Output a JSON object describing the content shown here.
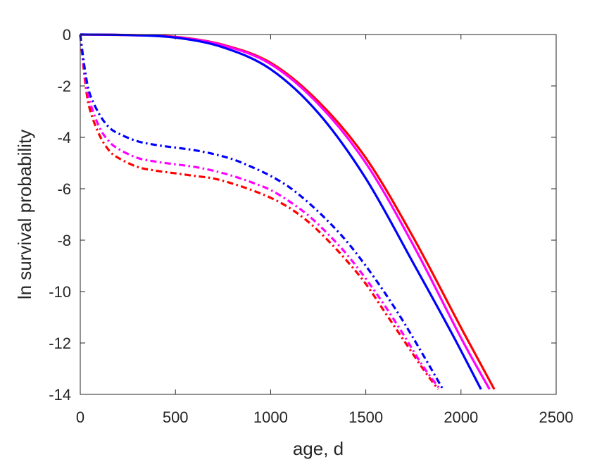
{
  "chart_data": {
    "type": "line",
    "title": "",
    "xlabel": "age, d",
    "ylabel": "ln survival probability",
    "xlim": [
      0,
      2500
    ],
    "ylim": [
      -14,
      0
    ],
    "xticks": [
      0,
      500,
      1000,
      1500,
      2000,
      2500
    ],
    "yticks": [
      0,
      -2,
      -4,
      -6,
      -8,
      -10,
      -12,
      -14
    ],
    "xtick_labels": [
      "0",
      "500",
      "1000",
      "1500",
      "2000",
      "2500"
    ],
    "ytick_labels": [
      "0",
      "-2",
      "-4",
      "-6",
      "-8",
      "-10",
      "-12",
      "-14"
    ],
    "grid": false,
    "legend": "none",
    "series": [
      {
        "color": "#ff0000",
        "style": "solid",
        "x": [
          0,
          250,
          500,
          750,
          1000,
          1250,
          1500,
          1750,
          2000,
          2175
        ],
        "y": [
          0,
          -0.02,
          -0.09,
          -0.4,
          -1.1,
          -2.6,
          -4.8,
          -7.9,
          -11.4,
          -13.8
        ]
      },
      {
        "color": "#ff00ff",
        "style": "solid",
        "x": [
          0,
          250,
          500,
          750,
          1000,
          1250,
          1500,
          1750,
          2000,
          2150
        ],
        "y": [
          0,
          -0.02,
          -0.1,
          -0.42,
          -1.15,
          -2.7,
          -5.0,
          -8.2,
          -11.8,
          -13.8
        ]
      },
      {
        "color": "#0000ff",
        "style": "solid",
        "x": [
          0,
          250,
          500,
          750,
          1000,
          1250,
          1500,
          1750,
          1950,
          2105
        ],
        "y": [
          0,
          -0.02,
          -0.12,
          -0.5,
          -1.35,
          -3.05,
          -5.6,
          -8.9,
          -11.6,
          -13.8
        ]
      },
      {
        "color": "#ff0000",
        "style": "dashdot",
        "x": [
          0,
          25,
          50,
          100,
          150,
          200,
          300,
          400,
          500,
          600,
          700,
          800,
          900,
          1000,
          1100,
          1200,
          1300,
          1400,
          1500,
          1600,
          1700,
          1800,
          1880
        ],
        "y": [
          0,
          -1.8,
          -2.9,
          -3.9,
          -4.5,
          -4.8,
          -5.15,
          -5.3,
          -5.4,
          -5.5,
          -5.6,
          -5.8,
          -6.05,
          -6.35,
          -6.75,
          -7.3,
          -8.0,
          -8.8,
          -9.7,
          -10.8,
          -11.9,
          -13.0,
          -13.8
        ]
      },
      {
        "color": "#ff00ff",
        "style": "dashdot",
        "x": [
          0,
          25,
          50,
          100,
          150,
          200,
          300,
          400,
          500,
          600,
          700,
          800,
          900,
          1000,
          1100,
          1200,
          1300,
          1400,
          1500,
          1600,
          1700,
          1800,
          1890
        ],
        "y": [
          0,
          -1.6,
          -2.6,
          -3.6,
          -4.15,
          -4.45,
          -4.8,
          -4.95,
          -5.05,
          -5.15,
          -5.3,
          -5.5,
          -5.75,
          -6.05,
          -6.5,
          -7.05,
          -7.75,
          -8.55,
          -9.5,
          -10.55,
          -11.7,
          -12.9,
          -13.8
        ]
      },
      {
        "color": "#0000ff",
        "style": "dashdot",
        "x": [
          0,
          25,
          50,
          100,
          150,
          200,
          300,
          400,
          500,
          600,
          700,
          800,
          900,
          1000,
          1100,
          1200,
          1300,
          1400,
          1500,
          1600,
          1700,
          1800,
          1905
        ],
        "y": [
          0,
          -1.4,
          -2.3,
          -3.1,
          -3.6,
          -3.85,
          -4.15,
          -4.3,
          -4.4,
          -4.5,
          -4.65,
          -4.85,
          -5.15,
          -5.5,
          -5.95,
          -6.55,
          -7.25,
          -8.05,
          -9.0,
          -10.05,
          -11.2,
          -12.45,
          -13.8
        ]
      }
    ]
  }
}
